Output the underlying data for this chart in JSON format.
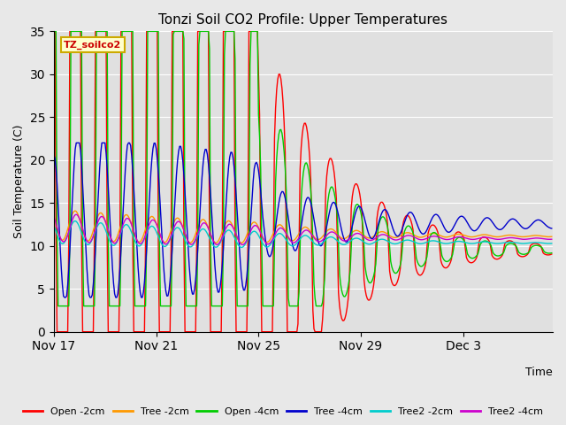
{
  "title": "Tonzi Soil CO2 Profile: Upper Temperatures",
  "ylabel": "Soil Temperature (C)",
  "xlabel": "Time",
  "watermark_text": "TZ_soilco2",
  "ylim": [
    0,
    35
  ],
  "yticks": [
    0,
    5,
    10,
    15,
    20,
    25,
    30,
    35
  ],
  "fig_bg_color": "#e8e8e8",
  "plot_bg_color": "#e0e0e0",
  "grid_color": "#ffffff",
  "series": [
    {
      "label": "Open -2cm",
      "color": "#ff0000"
    },
    {
      "label": "Tree -2cm",
      "color": "#ff9900"
    },
    {
      "label": "Open -4cm",
      "color": "#00cc00"
    },
    {
      "label": "Tree -4cm",
      "color": "#0000cc"
    },
    {
      "label": "Tree2 -2cm",
      "color": "#00cccc"
    },
    {
      "label": "Tree2 -4cm",
      "color": "#cc00cc"
    }
  ],
  "xtick_labels": [
    "Nov 17",
    "Nov 21",
    "Nov 25",
    "Nov 29",
    "Dec 3"
  ],
  "xtick_days": [
    0,
    4,
    8,
    12,
    16
  ],
  "total_days": 19.5
}
